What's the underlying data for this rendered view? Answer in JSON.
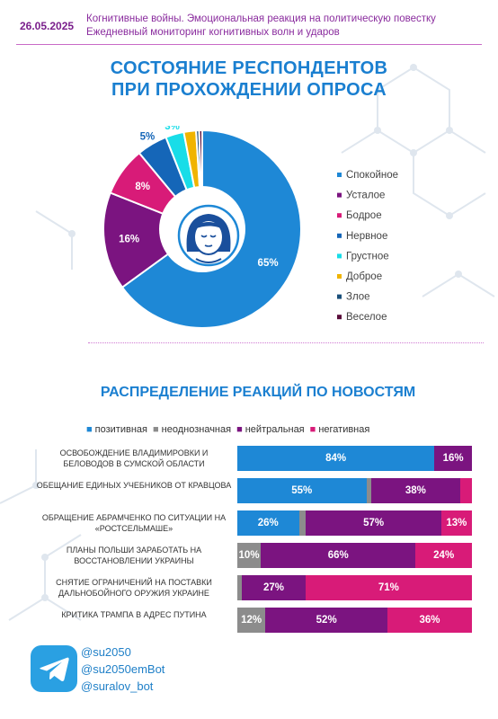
{
  "header": {
    "date": "26.05.2025",
    "subtitle_line1": "Когнитивные войны. Эмоциональная реакция на политическую повестку",
    "subtitle_line2": "Ежедневный мониторинг когнитивных волн и ударов"
  },
  "section1": {
    "title_line1": "СОСТОЯНИЕ РЕСПОНДЕНТОВ",
    "title_line2": "ПРИ ПРОХОЖДЕНИИ ОПРОСА"
  },
  "section2": {
    "title": "РАСПРЕДЕЛЕНИЕ РЕАКЦИЙ ПО НОВОСТЯМ"
  },
  "chart_data": [
    {
      "type": "pie",
      "variant": "donut",
      "legend_position": "right",
      "center_icon": "woman-face-icon",
      "slices": [
        {
          "name": "Спокойное",
          "value": 65,
          "label": "65%",
          "color": "#1e88d6"
        },
        {
          "name": "Усталое",
          "value": 16,
          "label": "16%",
          "color": "#7b1480"
        },
        {
          "name": "Бодрое",
          "value": 8,
          "label": "8%",
          "color": "#d81b78"
        },
        {
          "name": "Нервное",
          "value": 5,
          "label": "5%",
          "color": "#1566b8"
        },
        {
          "name": "Грустное",
          "value": 3,
          "label": "3%",
          "color": "#18dde8"
        },
        {
          "name": "Доброе",
          "value": 2,
          "label": "2%",
          "color": "#f0b400"
        },
        {
          "name": "Злое",
          "value": 0.5,
          "label": "",
          "color": "#1a4f7a"
        },
        {
          "name": "Веселое",
          "value": 0.5,
          "label": "",
          "color": "#5a0d3a"
        }
      ]
    },
    {
      "type": "bar",
      "orientation": "horizontal",
      "stacked": true,
      "legend_position": "top",
      "series": [
        {
          "name": "позитивная",
          "color": "#1e88d6"
        },
        {
          "name": "неоднозначная",
          "color": "#8c8c8c"
        },
        {
          "name": "нейтральная",
          "color": "#7b1480"
        },
        {
          "name": "негативная",
          "color": "#d81b78"
        }
      ],
      "rows": [
        {
          "category": "ОСВОБОЖДЕНИЕ ВЛАДИМИРОВКИ И БЕЛОВОДОВ В СУМСКОЙ ОБЛАСТИ",
          "values": [
            84,
            0,
            16,
            0
          ],
          "labels": [
            "84%",
            "",
            "16%",
            ""
          ]
        },
        {
          "category": "ОБЕЩАНИЕ ЕДИНЫХ УЧЕБНИКОВ ОТ КРАВЦОВА",
          "values": [
            55,
            2,
            38,
            5
          ],
          "labels": [
            "55%",
            "",
            "38%",
            ""
          ]
        },
        {
          "category": "ОБРАЩЕНИЕ АБРАМЧЕНКО ПО СИТУАЦИИ НА «РОСТСЕЛЬМАШЕ»",
          "values": [
            26,
            3,
            57,
            13
          ],
          "labels": [
            "26%",
            "",
            "57%",
            "13%"
          ]
        },
        {
          "category": "ПЛАНЫ ПОЛЬШИ ЗАРАБОТАТЬ НА ВОССТАНОВЛЕНИИ УКРАИНЫ",
          "values": [
            0,
            10,
            66,
            24
          ],
          "labels": [
            "",
            "10%",
            "66%",
            "24%"
          ]
        },
        {
          "category": "СНЯТИЕ ОГРАНИЧЕНИЙ НА ПОСТАВКИ ДАЛЬНОБОЙНОГО ОРУЖИЯ УКРАИНЕ",
          "values": [
            0,
            2,
            27,
            71
          ],
          "labels": [
            "",
            "",
            "27%",
            "71%"
          ]
        },
        {
          "category": "КРИТИКА ТРАМПА В АДРЕС ПУТИНА",
          "values": [
            0,
            12,
            52,
            36
          ],
          "labels": [
            "",
            "12%",
            "52%",
            "36%"
          ]
        }
      ]
    }
  ],
  "footer": {
    "icon": "telegram-icon",
    "links": [
      "@su2050",
      "@su2050emBot",
      "@suralov_bot"
    ]
  }
}
